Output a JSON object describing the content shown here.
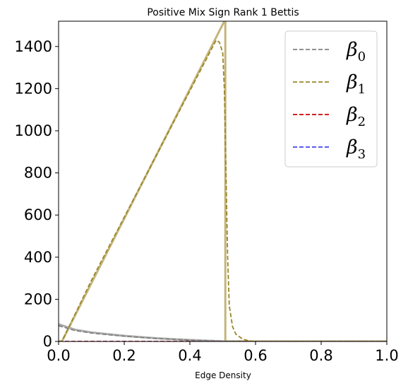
{
  "chart_data": {
    "type": "line",
    "title": "Positive Mix Sign Rank 1 Bettis",
    "xlabel": "Edge Density",
    "ylabel": "",
    "xlim": [
      0.0,
      1.0
    ],
    "ylim": [
      0,
      1520
    ],
    "x_ticks": [
      "0.0",
      "0.2",
      "0.4",
      "0.6",
      "0.8",
      "1.0"
    ],
    "y_ticks": [
      "0",
      "200",
      "400",
      "600",
      "800",
      "1000",
      "1200",
      "1400"
    ],
    "grid": false,
    "legend_position": "top-right",
    "series": [
      {
        "name": "β0",
        "legend_symbol": "β",
        "legend_subscript": "0",
        "color": "#808080",
        "dash": "dashed",
        "x": [
          0.0,
          0.05,
          0.1,
          0.15,
          0.2,
          0.25,
          0.3,
          0.35,
          0.4,
          0.45,
          0.5,
          0.55,
          0.6,
          0.8,
          1.0
        ],
        "y": [
          75,
          52,
          40,
          32,
          25,
          19,
          14,
          10,
          6,
          3,
          1,
          0,
          0,
          0,
          0
        ]
      },
      {
        "name": "β1",
        "legend_symbol": "β",
        "legend_subscript": "1",
        "color": "#9a8627",
        "dash": "dashed",
        "x": [
          0.0,
          0.01,
          0.1,
          0.2,
          0.3,
          0.4,
          0.47,
          0.48,
          0.49,
          0.5,
          0.505,
          0.51,
          0.515,
          0.52,
          0.53,
          0.54,
          0.56,
          0.58,
          0.6,
          0.8,
          1.0
        ],
        "y": [
          0,
          0,
          290,
          590,
          890,
          1190,
          1400,
          1430,
          1420,
          1370,
          1200,
          800,
          400,
          170,
          70,
          35,
          12,
          3,
          0,
          0,
          0
        ]
      },
      {
        "name": "β2",
        "legend_symbol": "β",
        "legend_subscript": "2",
        "color": "#cc0000",
        "dash": "dashed",
        "x": [
          0.0,
          1.0
        ],
        "y": [
          0,
          0
        ]
      },
      {
        "name": "β3",
        "legend_symbol": "β",
        "legend_subscript": "3",
        "color": "#4444ee",
        "dash": "dashed",
        "x": [
          0.0,
          1.0
        ],
        "y": [
          0,
          0
        ]
      }
    ],
    "envelope_series": [
      {
        "series": "β0",
        "color": "#a0a0a0",
        "x": [
          0.0,
          0.05,
          0.1,
          0.2,
          0.3,
          0.4,
          0.5,
          0.6,
          1.0
        ],
        "y": [
          82,
          56,
          43,
          27,
          15,
          7,
          1,
          0,
          0
        ]
      },
      {
        "series": "β1",
        "color": "#b8a864",
        "x": [
          0.0,
          0.01,
          0.505,
          0.508,
          0.508,
          0.52,
          0.6,
          1.0
        ],
        "y": [
          0,
          0,
          1520,
          1520,
          0,
          0,
          0,
          0
        ]
      }
    ]
  }
}
